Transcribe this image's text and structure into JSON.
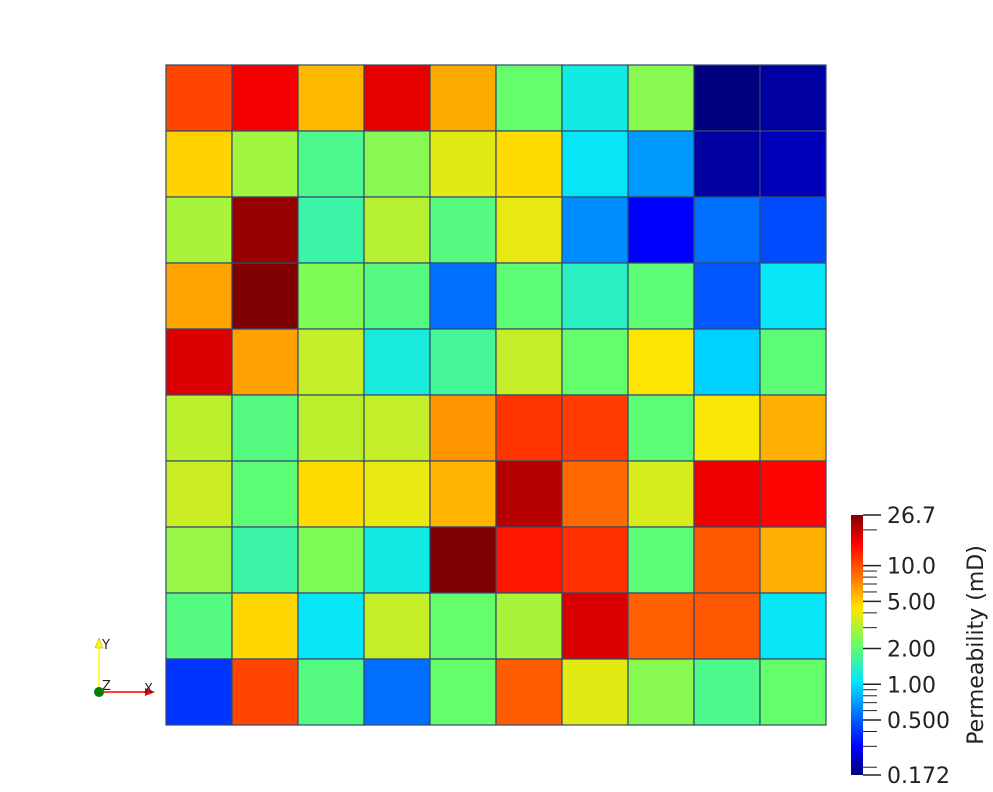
{
  "chart_data": {
    "type": "heatmap",
    "grid_rows": 10,
    "grid_cols": 10,
    "values": [
      [
        10.5,
        16.0,
        5.5,
        17.0,
        6.0,
        2.1,
        1.2,
        2.5,
        0.172,
        0.2
      ],
      [
        4.8,
        2.8,
        1.8,
        2.5,
        3.8,
        4.6,
        1.1,
        0.7,
        0.2,
        0.22
      ],
      [
        2.9,
        24.0,
        1.6,
        3.1,
        1.9,
        3.9,
        0.65,
        0.3,
        0.55,
        0.45
      ],
      [
        6.2,
        26.7,
        2.4,
        1.9,
        0.55,
        2.0,
        1.4,
        2.0,
        0.48,
        1.1
      ],
      [
        18.0,
        6.4,
        3.3,
        1.25,
        1.7,
        3.3,
        2.1,
        4.3,
        0.95,
        2.0
      ],
      [
        3.2,
        1.9,
        3.2,
        3.3,
        6.7,
        11.5,
        11.0,
        2.0,
        4.2,
        5.8
      ],
      [
        3.4,
        2.0,
        4.6,
        3.9,
        5.7,
        21.0,
        8.6,
        3.6,
        16.5,
        15.0
      ],
      [
        2.7,
        1.6,
        2.4,
        1.2,
        26.7,
        13.5,
        11.8,
        2.0,
        9.5,
        5.8
      ],
      [
        1.9,
        4.7,
        1.1,
        3.3,
        2.1,
        2.9,
        18.0,
        9.0,
        9.5,
        1.1
      ],
      [
        0.4,
        10.5,
        1.9,
        0.55,
        2.1,
        9.2,
        3.8,
        2.5,
        1.8,
        2.1
      ]
    ],
    "colorbar": {
      "title": "Permeability (mD)",
      "min": 0.172,
      "max": 26.7,
      "scale": "log",
      "tick_labels": [
        {
          "value": 26.7,
          "label": "26.7"
        },
        {
          "value": 10.0,
          "label": "10.0"
        },
        {
          "value": 5.0,
          "label": "5.00"
        },
        {
          "value": 2.0,
          "label": "2.00"
        },
        {
          "value": 1.0,
          "label": "1.00"
        },
        {
          "value": 0.5,
          "label": "0.500"
        },
        {
          "value": 0.172,
          "label": "0.172"
        }
      ],
      "minor_ticks": [
        0.2,
        0.3,
        0.4,
        0.6,
        0.7,
        0.8,
        0.9,
        3,
        4,
        6,
        7,
        8,
        9,
        20
      ],
      "colormap": [
        [
          0.0,
          "#00007f"
        ],
        [
          0.11,
          "#0000ff"
        ],
        [
          0.36,
          "#00e5ff"
        ],
        [
          0.5,
          "#66ff66"
        ],
        [
          0.64,
          "#ffe500"
        ],
        [
          0.89,
          "#ff0000"
        ],
        [
          1.0,
          "#7f0000"
        ]
      ]
    },
    "orientation_axes": {
      "y_label": "Y",
      "z_label": "Z",
      "x_label": "X",
      "x_color": "#ff0000",
      "y_color": "#ffff00",
      "z_color": "#008000"
    },
    "cell_border_color": "#34496b"
  }
}
